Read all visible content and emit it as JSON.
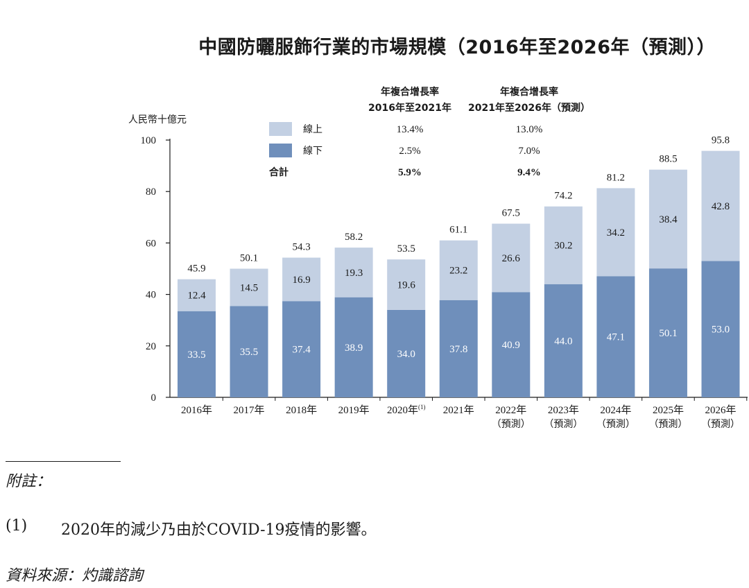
{
  "title": "中國防曬服飾行業的市場規模（2016年至2026年（預測））",
  "chart_data": {
    "type": "bar",
    "stacked": true,
    "ylabel": "人民幣十億元",
    "ylim": [
      0,
      100
    ],
    "yticks": [
      "0",
      "20",
      "40",
      "60",
      "80",
      "100"
    ],
    "categories": [
      [
        "2016年"
      ],
      [
        "2017年"
      ],
      [
        "2018年"
      ],
      [
        "2019年"
      ],
      [
        "2020年",
        "(1)"
      ],
      [
        "2021年"
      ],
      [
        "2022年",
        "（預測）"
      ],
      [
        "2023年",
        "（預測）"
      ],
      [
        "2024年",
        "（預測）"
      ],
      [
        "2025年",
        "（預測）"
      ],
      [
        "2026年",
        "（預測）"
      ]
    ],
    "series": [
      {
        "name": "線下",
        "color": "#6f8fbb",
        "values": [
          33.5,
          35.5,
          37.4,
          38.9,
          34.0,
          37.8,
          40.9,
          44.0,
          47.1,
          50.1,
          53.0
        ],
        "labels": [
          "33.5",
          "35.5",
          "37.4",
          "38.9",
          "34.0",
          "37.8",
          "40.9",
          "44.0",
          "47.1",
          "50.1",
          "53.0"
        ]
      },
      {
        "name": "線上",
        "color": "#c3d0e3",
        "values": [
          12.4,
          14.5,
          16.9,
          19.3,
          19.6,
          23.2,
          26.6,
          30.2,
          34.2,
          38.4,
          42.8
        ],
        "labels": [
          "12.4",
          "14.5",
          "16.9",
          "19.3",
          "19.6",
          "23.2",
          "26.6",
          "30.2",
          "34.2",
          "38.4",
          "42.8"
        ]
      }
    ],
    "totals": [
      45.9,
      50.1,
      54.3,
      58.2,
      53.5,
      61.1,
      67.5,
      74.2,
      81.2,
      88.5,
      95.8
    ],
    "total_labels": [
      "45.9",
      "50.1",
      "54.3",
      "58.2",
      "53.5",
      "61.1",
      "67.5",
      "74.2",
      "81.2",
      "88.5",
      "95.8"
    ],
    "legend": {
      "placement": "top-left",
      "col1_header": [
        "年複合增長率",
        "2016年至2021年"
      ],
      "col2_header": [
        "年複合增長率",
        "2021年至2026年（預測）"
      ],
      "rows": [
        {
          "label": "線上",
          "color": "#c3d0e3",
          "v1": "13.4%",
          "v2": "13.0%"
        },
        {
          "label": "線下",
          "color": "#6f8fbb",
          "v1": "2.5%",
          "v2": "7.0%"
        },
        {
          "label": "合計",
          "color": null,
          "v1": "5.9%",
          "v2": "9.4%",
          "bold": true
        }
      ]
    }
  },
  "notes": {
    "heading": "附註：",
    "items": [
      {
        "number": "(1)",
        "text": "2020年的減少乃由於COVID-19疫情的影響。"
      }
    ],
    "source": "資料來源：灼識諮詢"
  }
}
